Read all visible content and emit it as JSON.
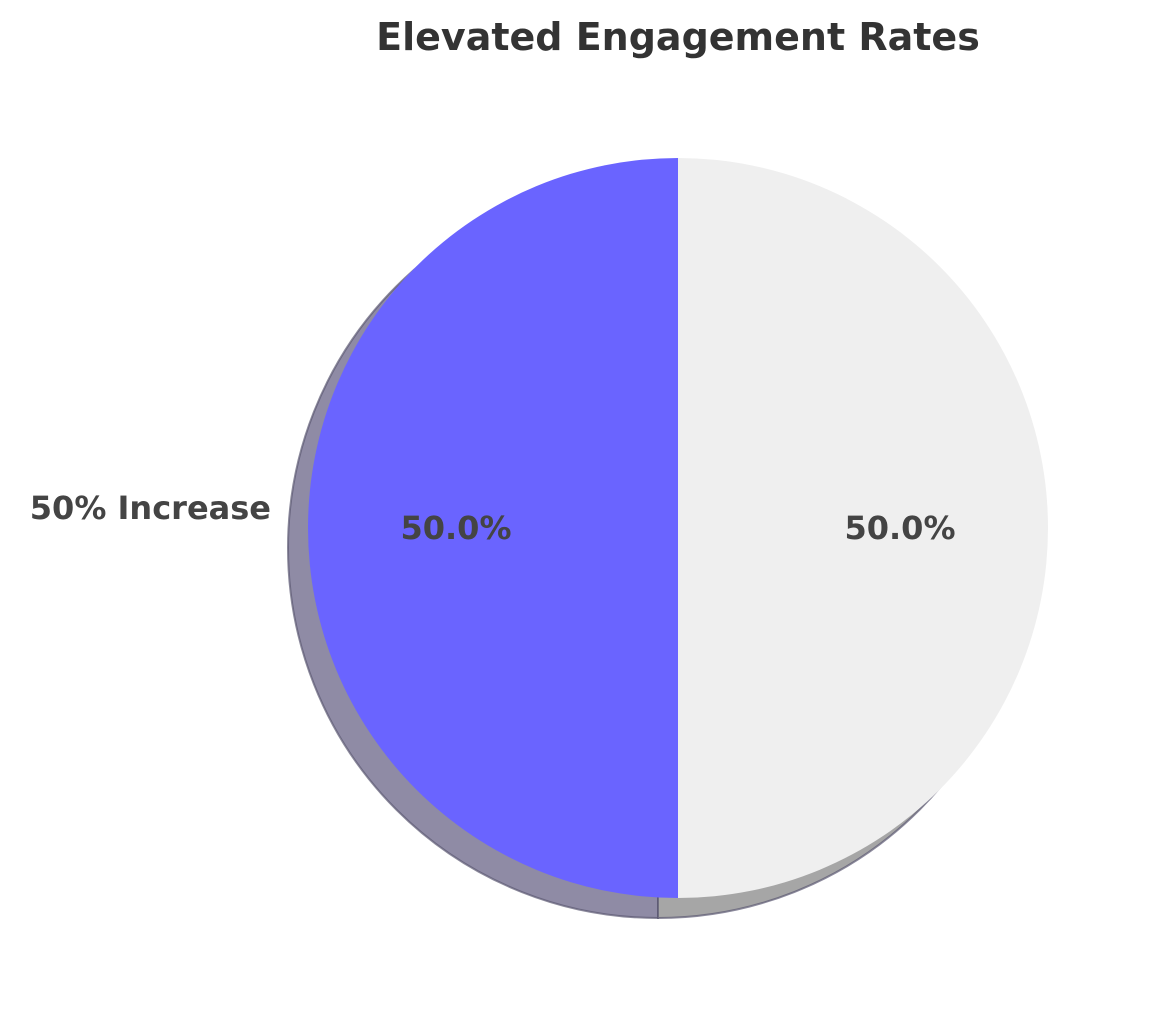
{
  "chart_data": {
    "type": "pie",
    "title": "Elevated Engagement Rates",
    "slices": [
      {
        "label": "50% Increase",
        "value": 50,
        "pct_label": "50.0%",
        "color": "#6a64ff"
      },
      {
        "label": "",
        "value": 50,
        "pct_label": "50.0%",
        "color": "#efefef"
      }
    ],
    "start_angle_deg": 90,
    "direction": "counterclockwise",
    "shadow": true
  }
}
